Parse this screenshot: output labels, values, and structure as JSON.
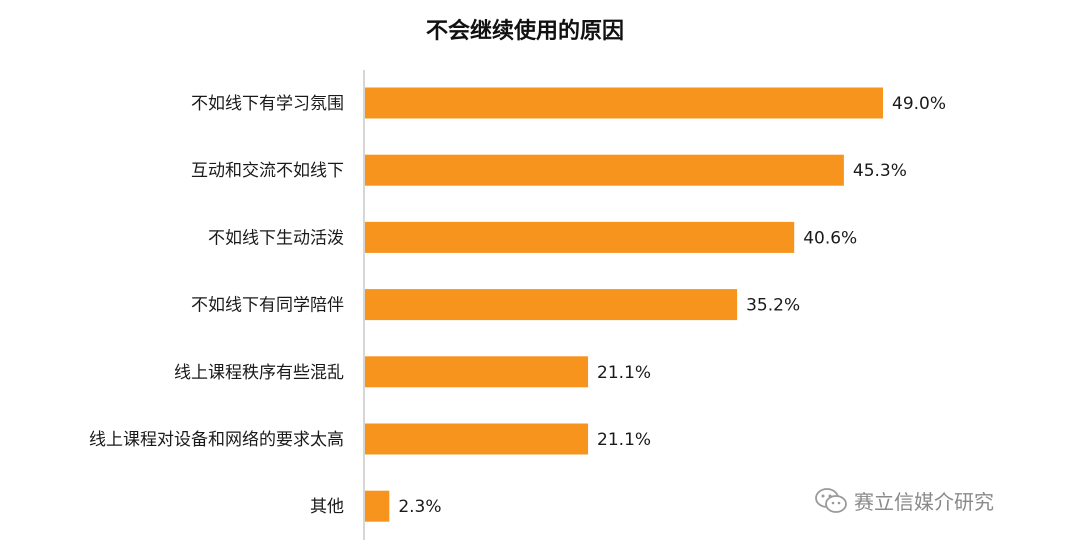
{
  "chart_data": {
    "type": "bar",
    "orientation": "horizontal",
    "title": "不会继续使用的原因",
    "categories": [
      "不如线下有学习氛围",
      "互动和交流不如线下",
      "不如线下生动活泼",
      "不如线下有同学陪伴",
      "线上课程秩序有些混乱",
      "线上课程对设备和网络的要求太高",
      "其他"
    ],
    "values": [
      49.0,
      45.3,
      40.6,
      35.2,
      21.1,
      21.1,
      2.3
    ],
    "value_labels": [
      "49.0%",
      "45.3%",
      "40.6%",
      "35.2%",
      "21.1%",
      "21.1%",
      "2.3%"
    ],
    "unit": "%",
    "xlim": [
      0,
      49.0
    ],
    "grid": false,
    "legend": "none",
    "bar_color": "#F7941E",
    "axis_color": "#C8C8C8"
  },
  "watermark": {
    "icon": "wechat-icon",
    "text": "赛立信媒介研究"
  }
}
